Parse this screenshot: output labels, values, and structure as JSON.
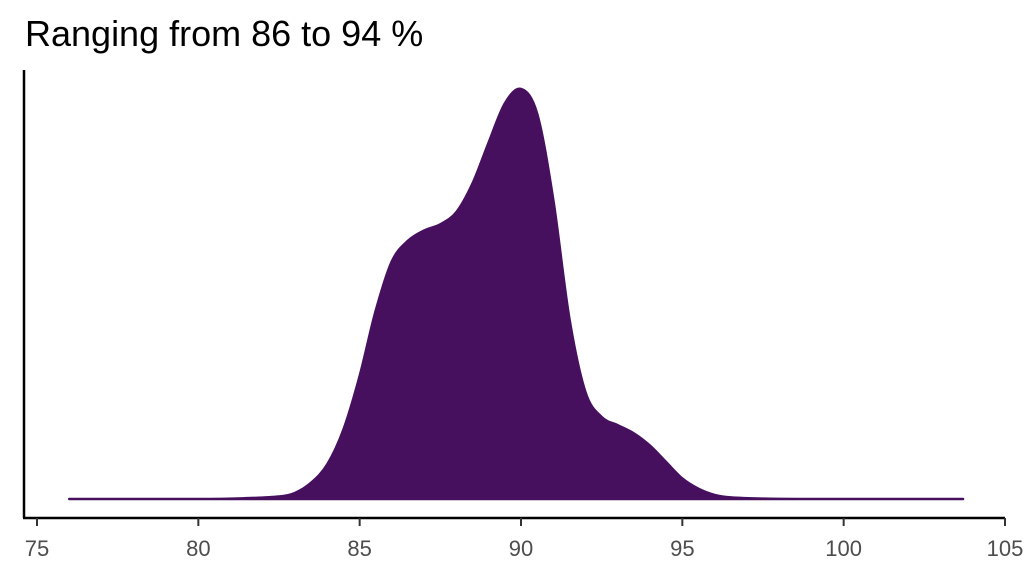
{
  "chart_data": {
    "type": "area",
    "title": "Ranging from 86 to 94 %",
    "xlabel": "",
    "ylabel": "",
    "xlim": [
      75,
      105
    ],
    "ylim": [
      0,
      1
    ],
    "x_ticks": [
      75,
      80,
      85,
      90,
      95,
      100,
      105
    ],
    "x_tick_labels": [
      "75",
      "80",
      "85",
      "90",
      "95",
      "100",
      "105"
    ],
    "y_ticks_shown": false,
    "grid": false,
    "legend": "none",
    "fill_color": "#47105e",
    "series": [
      {
        "x": [
          76.0,
          80.0,
          81.5,
          82.5,
          83.0,
          83.5,
          84.0,
          84.5,
          85.0,
          85.5,
          86.0,
          86.5,
          87.0,
          87.5,
          88.0,
          88.5,
          89.0,
          89.5,
          90.0,
          90.5,
          91.0,
          91.5,
          92.0,
          92.5,
          93.0,
          93.5,
          94.0,
          94.5,
          95.0,
          95.5,
          96.0,
          96.5,
          97.5,
          99.0,
          103.7
        ],
        "y": [
          0.0,
          0.0,
          0.002,
          0.006,
          0.015,
          0.04,
          0.085,
          0.17,
          0.3,
          0.46,
          0.58,
          0.63,
          0.655,
          0.67,
          0.7,
          0.77,
          0.87,
          0.965,
          1.0,
          0.94,
          0.73,
          0.44,
          0.26,
          0.2,
          0.18,
          0.16,
          0.13,
          0.09,
          0.05,
          0.025,
          0.01,
          0.004,
          0.001,
          0.0,
          0.0
        ]
      }
    ]
  }
}
